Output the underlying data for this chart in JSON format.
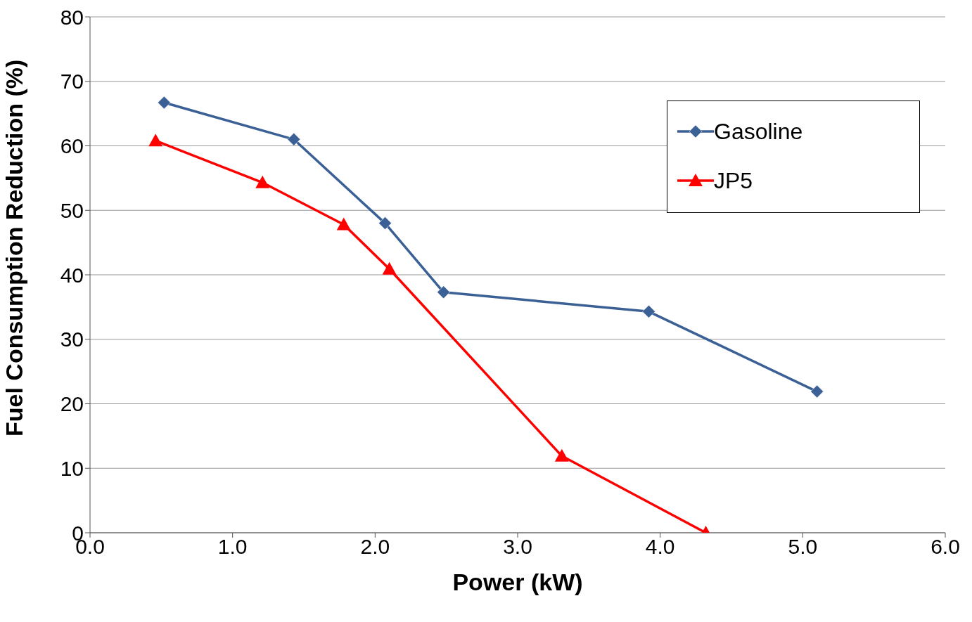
{
  "chart_data": {
    "type": "line",
    "xlabel": "Power (kW)",
    "ylabel": "Fuel Consumption Reduction (%)",
    "xlim": [
      0,
      6
    ],
    "xticks": [
      {
        "value": 0,
        "label": "0.0"
      },
      {
        "value": 1,
        "label": "1.0"
      },
      {
        "value": 2,
        "label": "2.0"
      },
      {
        "value": 3,
        "label": "3.0"
      },
      {
        "value": 4,
        "label": "4.0"
      },
      {
        "value": 5,
        "label": "5.0"
      },
      {
        "value": 6,
        "label": "6.0"
      }
    ],
    "ylim": [
      0,
      80
    ],
    "yticks": [
      0,
      10,
      20,
      30,
      40,
      50,
      60,
      70,
      80
    ],
    "grid": "y",
    "legend": "top right",
    "series": [
      {
        "name": "Gasoline",
        "color": "#3a6095",
        "marker": "diamond",
        "x": [
          0.52,
          1.43,
          2.07,
          2.48,
          3.92,
          5.1
        ],
        "values": [
          66.7,
          61.0,
          48.0,
          37.3,
          34.3,
          21.9
        ]
      },
      {
        "name": "JP5",
        "color": "#ff0000",
        "marker": "triangle",
        "x": [
          0.46,
          1.21,
          1.78,
          2.1,
          3.31,
          4.32
        ],
        "values": [
          60.8,
          54.3,
          47.8,
          40.9,
          11.9,
          0
        ]
      }
    ]
  }
}
